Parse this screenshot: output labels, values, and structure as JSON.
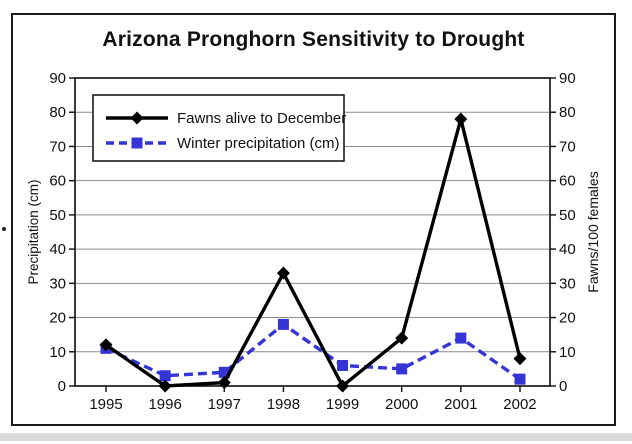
{
  "figure": {
    "background": "#ffffff",
    "border_color": "#1a1a1a",
    "footer_strip_color": "#d9d9d9"
  },
  "chart_data": {
    "type": "line",
    "title": "Arizona Pronghorn Sensitivity to Drought",
    "x": [
      1995,
      1996,
      1997,
      1998,
      1999,
      2000,
      2001,
      2002
    ],
    "series": [
      {
        "name": "Fawns alive to December",
        "axis": "right",
        "color": "#000000",
        "line_style": "solid",
        "marker": "diamond",
        "values": [
          12,
          0,
          1,
          33,
          0,
          14,
          78,
          8
        ]
      },
      {
        "name": "Winter precipitation (cm)",
        "axis": "left",
        "color": "#3535d6",
        "line_style": "dashed",
        "marker": "square",
        "values": [
          11,
          3,
          4,
          18,
          6,
          5,
          14,
          2
        ]
      }
    ],
    "left_axis": {
      "label": "Precipitation (cm)",
      "min": 0,
      "max": 90,
      "ticks": [
        0,
        10,
        20,
        30,
        40,
        50,
        60,
        70,
        80,
        90
      ]
    },
    "right_axis": {
      "label": "Fawns/100 females",
      "min": 0,
      "max": 90,
      "ticks": [
        0,
        10,
        20,
        30,
        40,
        50,
        60,
        70,
        80,
        90
      ]
    },
    "grid": {
      "horizontal": true,
      "vertical": false,
      "color": "#8c8c8c"
    },
    "legend": {
      "position": "top-left-inside"
    }
  }
}
